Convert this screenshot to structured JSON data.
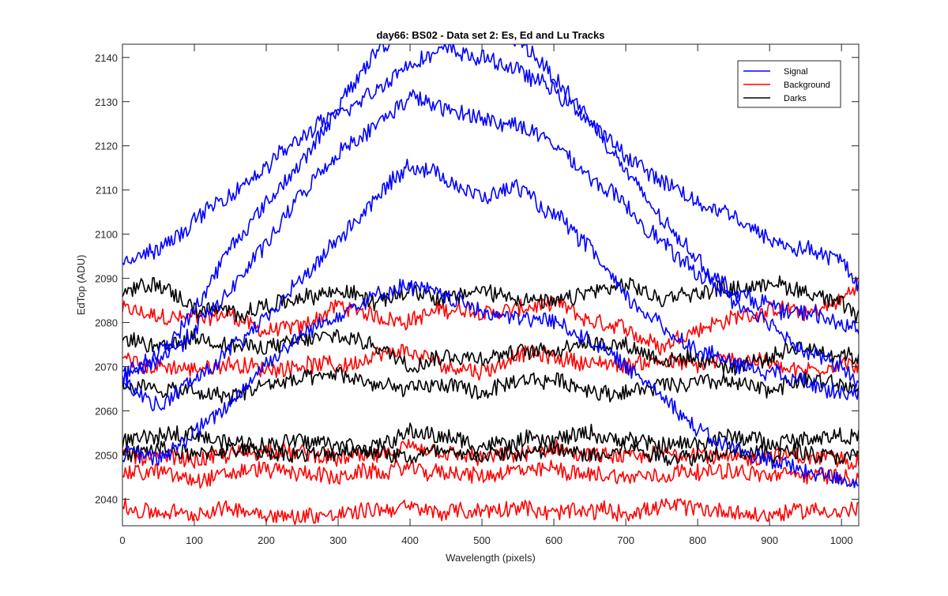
{
  "chart_data": {
    "type": "line",
    "title": "day66: BS02 - Data set 2: Es, Ed and Lu Tracks",
    "xlabel": "Wavelength (pixels)",
    "ylabel": "EdTop (ADU)",
    "xlim": [
      0,
      1024
    ],
    "ylim": [
      2034,
      2143
    ],
    "xticks": [
      0,
      100,
      200,
      300,
      400,
      500,
      600,
      700,
      800,
      900,
      1000
    ],
    "yticks": [
      2040,
      2050,
      2060,
      2070,
      2080,
      2090,
      2100,
      2110,
      2120,
      2130,
      2140
    ],
    "grid": false,
    "legend": {
      "placement": "top-right",
      "entries": [
        {
          "name": "Signal",
          "color": "#0000ff"
        },
        {
          "name": "Background",
          "color": "#ff0000"
        },
        {
          "name": "Darks",
          "color": "#000000"
        }
      ]
    },
    "noise_amplitude_adu": 1.8,
    "series": [
      {
        "group": "Signal",
        "color": "#0000ff",
        "x": [
          0,
          50,
          100,
          150,
          200,
          250,
          300,
          350,
          400,
          450,
          500,
          550,
          600,
          650,
          700,
          750,
          800,
          850,
          900,
          950,
          1000,
          1024
        ],
        "y": [
          2094,
          2096,
          2103,
          2109,
          2115,
          2122,
          2127,
          2133,
          2139,
          2142,
          2140,
          2137,
          2133,
          2125,
          2118,
          2112,
          2107,
          2104,
          2099,
          2097,
          2094,
          2089
        ]
      },
      {
        "group": "Signal",
        "color": "#0000ff",
        "x": [
          0,
          50,
          100,
          150,
          200,
          250,
          300,
          350,
          400,
          450,
          500,
          550,
          600,
          650,
          700,
          750,
          800,
          850,
          900,
          950,
          1000,
          1024
        ],
        "y": [
          2068,
          2073,
          2083,
          2097,
          2107,
          2117,
          2128,
          2141,
          2147,
          2144,
          2145,
          2144,
          2136,
          2126,
          2114,
          2103,
          2094,
          2087,
          2084,
          2082,
          2080,
          2078
        ]
      },
      {
        "group": "Signal",
        "color": "#0000ff",
        "x": [
          0,
          50,
          100,
          150,
          200,
          250,
          300,
          350,
          400,
          450,
          500,
          550,
          600,
          650,
          700,
          750,
          800,
          850,
          900,
          950,
          1000,
          1024
        ],
        "y": [
          2068,
          2071,
          2078,
          2088,
          2098,
          2109,
          2118,
          2124,
          2131,
          2128,
          2126,
          2125,
          2120,
          2113,
          2106,
          2098,
          2091,
          2085,
          2079,
          2074,
          2070,
          2066
        ]
      },
      {
        "group": "Signal",
        "color": "#0000ff",
        "x": [
          0,
          50,
          100,
          150,
          200,
          250,
          300,
          350,
          400,
          450,
          500,
          550,
          600,
          650,
          700,
          750,
          800,
          850,
          900,
          950,
          1000,
          1024
        ],
        "y": [
          2066,
          2061,
          2067,
          2074,
          2081,
          2090,
          2099,
          2108,
          2116,
          2113,
          2108,
          2111,
          2104,
          2097,
          2086,
          2079,
          2074,
          2071,
          2069,
          2067,
          2065,
          2064
        ]
      },
      {
        "group": "Signal",
        "color": "#0000ff",
        "x": [
          0,
          50,
          100,
          150,
          200,
          250,
          300,
          350,
          400,
          450,
          500,
          550,
          600,
          650,
          700,
          750,
          800,
          850,
          900,
          950,
          1000,
          1024
        ],
        "y": [
          2050,
          2049,
          2055,
          2062,
          2071,
          2077,
          2082,
          2086,
          2088,
          2086,
          2083,
          2081,
          2080,
          2076,
          2070,
          2064,
          2056,
          2051,
          2049,
          2046,
          2045,
          2044
        ]
      },
      {
        "group": "Background",
        "color": "#ff0000",
        "x": [
          0,
          50,
          100,
          150,
          200,
          250,
          300,
          350,
          400,
          450,
          500,
          550,
          600,
          650,
          700,
          750,
          800,
          850,
          900,
          950,
          1000,
          1024
        ],
        "y": [
          2083,
          2081,
          2081,
          2082,
          2078,
          2079,
          2084,
          2081,
          2081,
          2083,
          2082,
          2083,
          2084,
          2080,
          2078,
          2075,
          2079,
          2081,
          2083,
          2082,
          2085,
          2089
        ]
      },
      {
        "group": "Background",
        "color": "#ff0000",
        "x": [
          0,
          50,
          100,
          150,
          200,
          250,
          300,
          350,
          400,
          450,
          500,
          550,
          600,
          650,
          700,
          750,
          800,
          850,
          900,
          950,
          1000,
          1024
        ],
        "y": [
          2072,
          2070,
          2069,
          2071,
          2069,
          2071,
          2070,
          2072,
          2073,
          2070,
          2069,
          2073,
          2072,
          2071,
          2070,
          2072,
          2070,
          2072,
          2071,
          2069,
          2071,
          2070
        ]
      },
      {
        "group": "Background",
        "color": "#ff0000",
        "x": [
          0,
          50,
          100,
          150,
          200,
          250,
          300,
          350,
          400,
          450,
          500,
          550,
          600,
          650,
          700,
          750,
          800,
          850,
          900,
          950,
          1000,
          1024
        ],
        "y": [
          2050,
          2050,
          2049,
          2050,
          2051,
          2050,
          2049,
          2050,
          2051,
          2050,
          2049,
          2050,
          2051,
          2050,
          2049,
          2050,
          2051,
          2049,
          2050,
          2049,
          2050,
          2049
        ]
      },
      {
        "group": "Background",
        "color": "#ff0000",
        "x": [
          0,
          50,
          100,
          150,
          200,
          250,
          300,
          350,
          400,
          450,
          500,
          550,
          600,
          650,
          700,
          750,
          800,
          850,
          900,
          950,
          1000,
          1024
        ],
        "y": [
          2046,
          2046,
          2045,
          2046,
          2047,
          2046,
          2045,
          2046,
          2047,
          2046,
          2045,
          2046,
          2047,
          2046,
          2045,
          2046,
          2047,
          2046,
          2045,
          2046,
          2045,
          2045
        ]
      },
      {
        "group": "Background",
        "color": "#ff0000",
        "x": [
          0,
          50,
          100,
          150,
          200,
          250,
          300,
          350,
          400,
          450,
          500,
          550,
          600,
          650,
          700,
          750,
          800,
          850,
          900,
          950,
          1000,
          1024
        ],
        "y": [
          2038,
          2037,
          2036,
          2038,
          2037,
          2036,
          2037,
          2038,
          2038,
          2037,
          2037,
          2038,
          2037,
          2038,
          2037,
          2038,
          2038,
          2037,
          2036,
          2038,
          2037,
          2038
        ]
      },
      {
        "group": "Darks",
        "color": "#000000",
        "x": [
          0,
          50,
          100,
          150,
          200,
          250,
          300,
          350,
          400,
          450,
          500,
          550,
          600,
          650,
          700,
          750,
          800,
          850,
          900,
          950,
          1000,
          1024
        ],
        "y": [
          2087,
          2089,
          2083,
          2082,
          2084,
          2085,
          2087,
          2085,
          2088,
          2086,
          2087,
          2086,
          2084,
          2087,
          2088,
          2085,
          2087,
          2088,
          2089,
          2087,
          2085,
          2081
        ]
      },
      {
        "group": "Darks",
        "color": "#000000",
        "x": [
          0,
          50,
          100,
          150,
          200,
          250,
          300,
          350,
          400,
          450,
          500,
          550,
          600,
          650,
          700,
          750,
          800,
          850,
          900,
          950,
          1000,
          1024
        ],
        "y": [
          2076,
          2074,
          2077,
          2075,
          2074,
          2076,
          2077,
          2075,
          2071,
          2073,
          2072,
          2073,
          2074,
          2076,
          2075,
          2072,
          2071,
          2070,
          2072,
          2074,
          2073,
          2072
        ]
      },
      {
        "group": "Darks",
        "color": "#000000",
        "x": [
          0,
          50,
          100,
          150,
          200,
          250,
          300,
          350,
          400,
          450,
          500,
          550,
          600,
          650,
          700,
          750,
          800,
          850,
          900,
          950,
          1000,
          1024
        ],
        "y": [
          2066,
          2065,
          2064,
          2063,
          2066,
          2067,
          2068,
          2066,
          2065,
          2066,
          2064,
          2066,
          2067,
          2065,
          2064,
          2066,
          2067,
          2066,
          2065,
          2067,
          2066,
          2065
        ]
      },
      {
        "group": "Darks",
        "color": "#000000",
        "x": [
          0,
          50,
          100,
          150,
          200,
          250,
          300,
          350,
          400,
          450,
          500,
          550,
          600,
          650,
          700,
          750,
          800,
          850,
          900,
          950,
          1000,
          1024
        ],
        "y": [
          2053,
          2054,
          2055,
          2053,
          2052,
          2054,
          2053,
          2052,
          2055,
          2054,
          2052,
          2053,
          2054,
          2055,
          2053,
          2052,
          2053,
          2054,
          2053,
          2054,
          2055,
          2054
        ]
      },
      {
        "group": "Darks",
        "color": "#000000",
        "x": [
          0,
          50,
          100,
          150,
          200,
          250,
          300,
          350,
          400,
          450,
          500,
          550,
          600,
          650,
          700,
          750,
          800,
          850,
          900,
          950,
          1000,
          1024
        ],
        "y": [
          2050,
          2051,
          2050,
          2051,
          2051,
          2050,
          2050,
          2051,
          2050,
          2051,
          2050,
          2050,
          2051,
          2050,
          2052,
          2050,
          2050,
          2051,
          2050,
          2051,
          2050,
          2050
        ]
      }
    ]
  }
}
